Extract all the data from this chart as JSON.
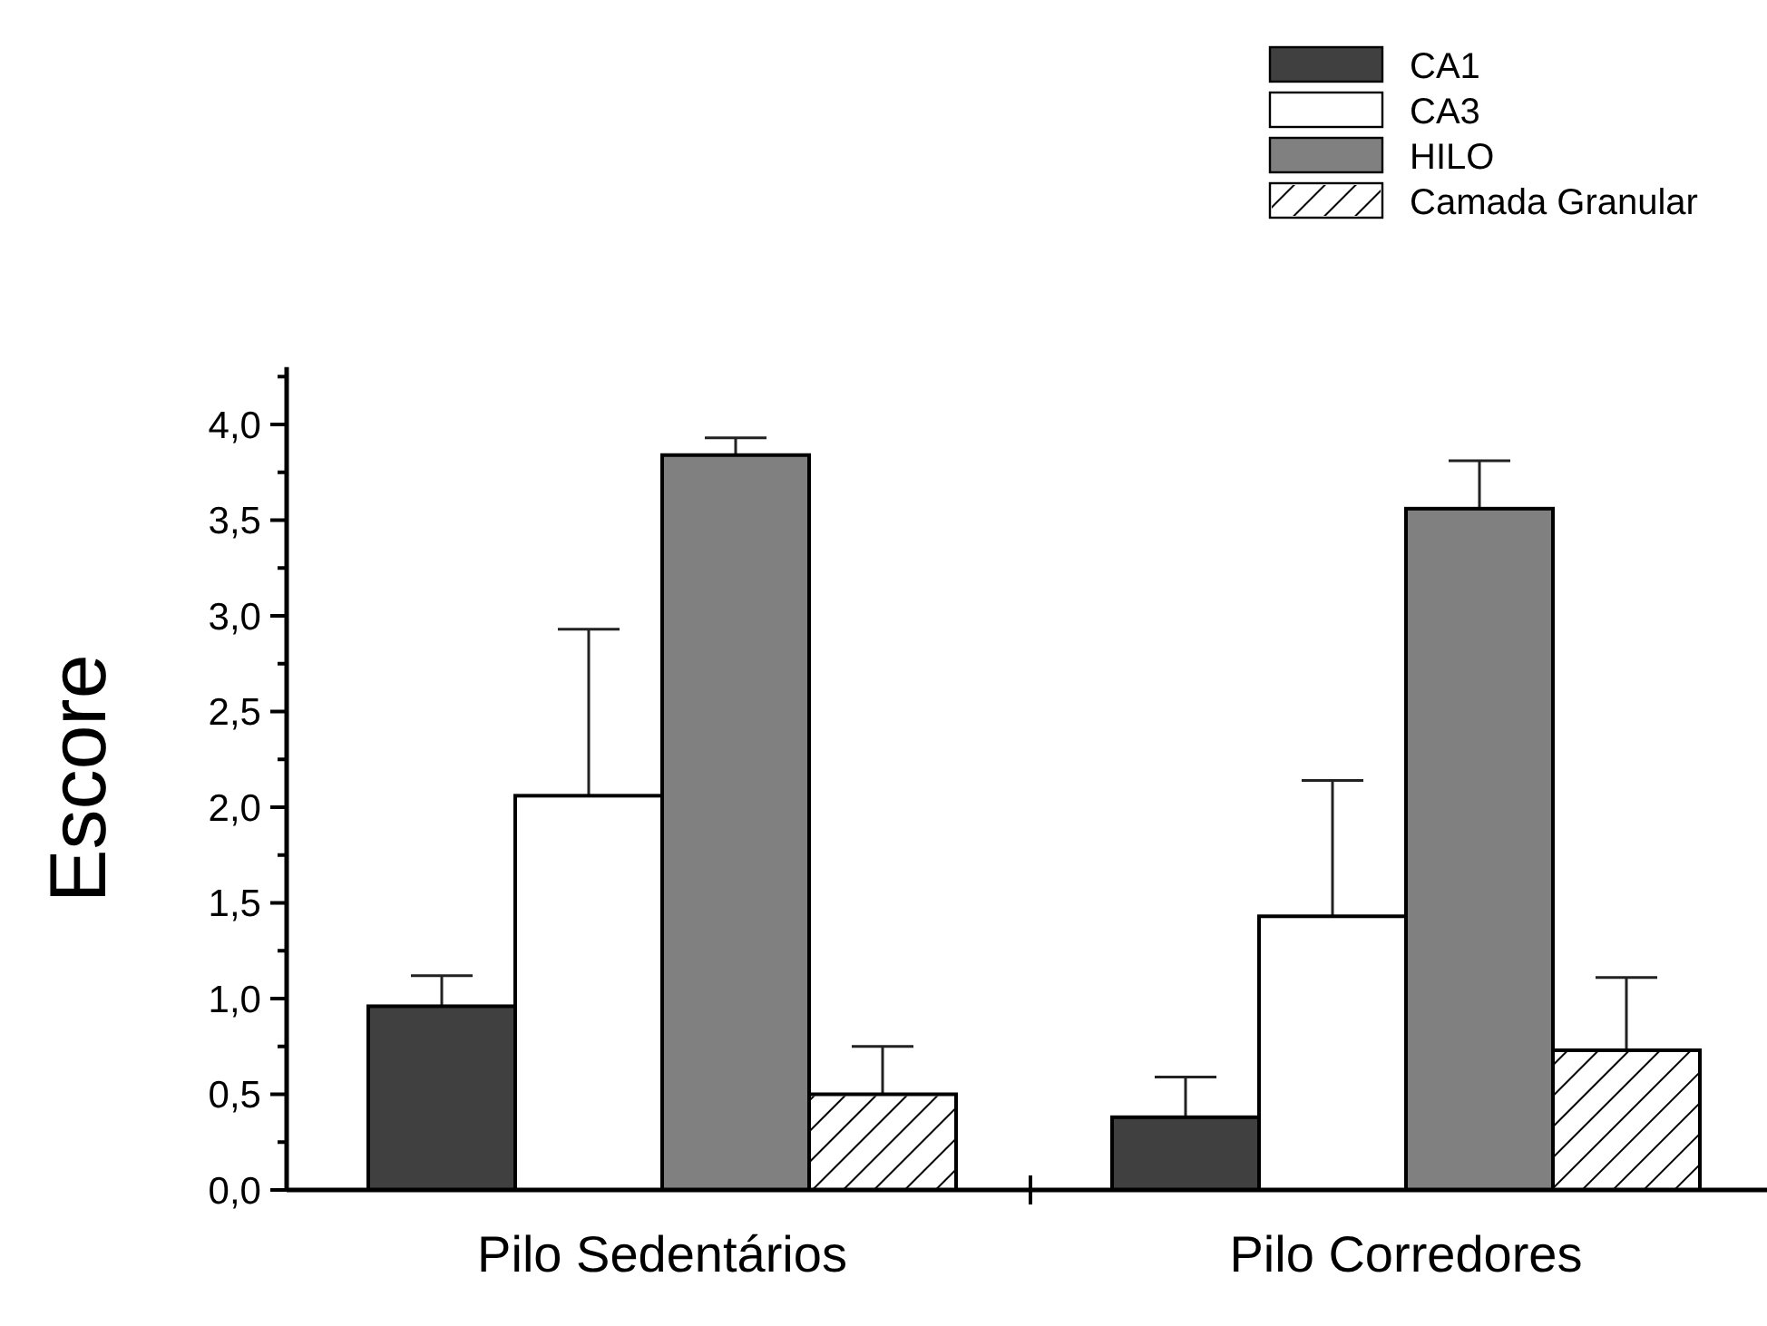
{
  "chart_data": {
    "type": "bar",
    "ylabel": "Escore",
    "categories": [
      "Pilo Sedentários",
      "Pilo Corredores"
    ],
    "series": [
      {
        "name": "CA1",
        "color": "#404040",
        "values": [
          0.96,
          0.38
        ],
        "errors": [
          [
            0.96,
            1.12
          ],
          [
            0.38,
            0.59
          ]
        ]
      },
      {
        "name": "CA3",
        "color": "#ffffff",
        "values": [
          2.06,
          1.43
        ],
        "errors": [
          [
            2.06,
            2.93
          ],
          [
            1.43,
            2.14
          ]
        ]
      },
      {
        "name": "HILO",
        "color": "#808080",
        "values": [
          3.84,
          3.56
        ],
        "errors": [
          [
            3.84,
            3.93
          ],
          [
            3.56,
            3.81
          ]
        ]
      },
      {
        "name": "Camada Granular",
        "color": "#ffffff",
        "values": [
          0.5,
          0.73
        ],
        "errors": [
          [
            0.5,
            0.75
          ],
          [
            0.73,
            1.11
          ]
        ]
      }
    ],
    "ylim": [
      0,
      4.3
    ],
    "yticks": [
      {
        "value": 0,
        "label": "0,0"
      },
      {
        "value": 0.25,
        "label": null
      },
      {
        "value": 0.5,
        "label": "0,5"
      },
      {
        "value": 0.75,
        "label": null
      },
      {
        "value": 1,
        "label": "1,0"
      },
      {
        "value": 1.25,
        "label": null
      },
      {
        "value": 1.5,
        "label": "1,5"
      },
      {
        "value": 1.75,
        "label": null
      },
      {
        "value": 2,
        "label": "2,0"
      },
      {
        "value": 2.25,
        "label": null
      },
      {
        "value": 2.5,
        "label": "2,5"
      },
      {
        "value": 2.75,
        "label": null
      },
      {
        "value": 3,
        "label": "3,0"
      },
      {
        "value": 3.25,
        "label": null
      },
      {
        "value": 3.5,
        "label": "3,5"
      },
      {
        "value": 3.75,
        "label": null
      },
      {
        "value": 4,
        "label": "4,0"
      },
      {
        "value": 4.25,
        "label": null
      }
    ],
    "grid": false,
    "legend": "top right"
  }
}
